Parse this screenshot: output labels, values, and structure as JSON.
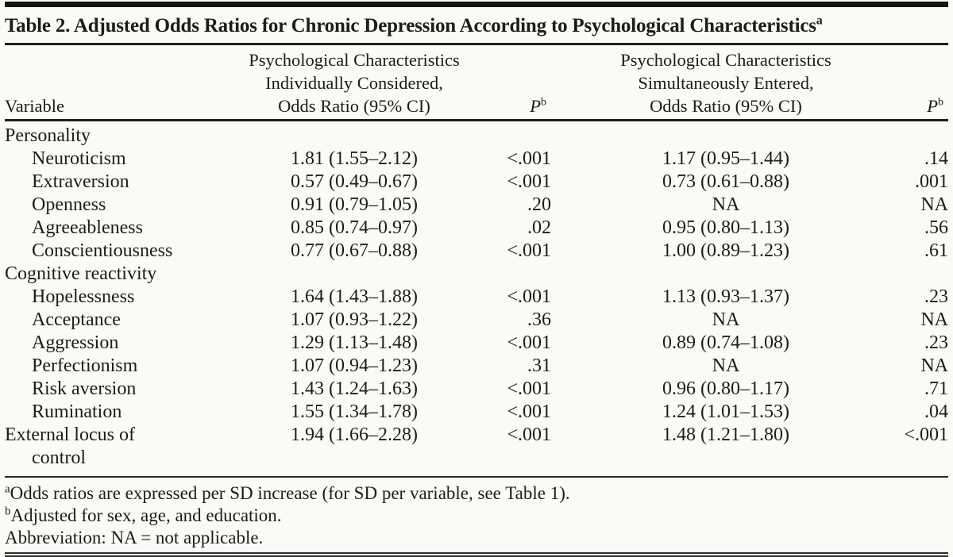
{
  "table": {
    "title": "Table 2. Adjusted Odds Ratios for Chronic Depression According to Psychological Characteristics",
    "title_marker": "a",
    "header": {
      "variable": "Variable",
      "group1_lines": [
        "Psychological Characteristics",
        "Individually Considered,",
        "Odds Ratio (95% CI)"
      ],
      "p_label": "P",
      "p_marker": "b",
      "group2_lines": [
        "Psychological Characteristics",
        "Simultaneously Entered,",
        "Odds Ratio (95% CI)"
      ]
    },
    "rows": [
      {
        "type": "section",
        "label": "Personality",
        "or1": "",
        "p1": "",
        "or2": "",
        "p2": ""
      },
      {
        "type": "item",
        "label": "Neuroticism",
        "or1": "1.81 (1.55–2.12)",
        "p1": "<.001",
        "or2": "1.17 (0.95–1.44)",
        "p2": ".14"
      },
      {
        "type": "item",
        "label": "Extraversion",
        "or1": "0.57 (0.49–0.67)",
        "p1": "<.001",
        "or2": "0.73 (0.61–0.88)",
        "p2": ".001"
      },
      {
        "type": "item",
        "label": "Openness",
        "or1": "0.91 (0.79–1.05)",
        "p1": ".20",
        "or2": "NA",
        "p2": "NA"
      },
      {
        "type": "item",
        "label": "Agreeableness",
        "or1": "0.85 (0.74–0.97)",
        "p1": ".02",
        "or2": "0.95 (0.80–1.13)",
        "p2": ".56"
      },
      {
        "type": "item",
        "label": "Conscientiousness",
        "or1": "0.77 (0.67–0.88)",
        "p1": "<.001",
        "or2": "1.00 (0.89–1.23)",
        "p2": ".61"
      },
      {
        "type": "section",
        "label": "Cognitive reactivity",
        "or1": "",
        "p1": "",
        "or2": "",
        "p2": ""
      },
      {
        "type": "item",
        "label": "Hopelessness",
        "or1": "1.64 (1.43–1.88)",
        "p1": "<.001",
        "or2": "1.13 (0.93–1.37)",
        "p2": ".23"
      },
      {
        "type": "item",
        "label": "Acceptance",
        "or1": "1.07 (0.93–1.22)",
        "p1": ".36",
        "or2": "NA",
        "p2": "NA"
      },
      {
        "type": "item",
        "label": "Aggression",
        "or1": "1.29 (1.13–1.48)",
        "p1": "<.001",
        "or2": "0.89 (0.74–1.08)",
        "p2": ".23"
      },
      {
        "type": "item",
        "label": "Perfectionism",
        "or1": "1.07 (0.94–1.23)",
        "p1": ".31",
        "or2": "NA",
        "p2": "NA"
      },
      {
        "type": "item",
        "label": "Risk aversion",
        "or1": "1.43 (1.24–1.63)",
        "p1": "<.001",
        "or2": "0.96 (0.80–1.17)",
        "p2": ".71"
      },
      {
        "type": "item",
        "label": "Rumination",
        "or1": "1.55 (1.34–1.78)",
        "p1": "<.001",
        "or2": "1.24 (1.01–1.53)",
        "p2": ".04"
      },
      {
        "type": "wrap",
        "label": "External locus of\ncontrol",
        "or1": "1.94 (1.66–2.28)",
        "p1": "<.001",
        "or2": "1.48 (1.21–1.80)",
        "p2": "<.001"
      }
    ],
    "footnotes": [
      {
        "marker": "a",
        "text": "Odds ratios are expressed per SD increase (for SD per variable, see Table 1)."
      },
      {
        "marker": "b",
        "text": "Adjusted for sex, age, and education."
      },
      {
        "marker": "",
        "text": "Abbreviation: NA = not applicable."
      }
    ]
  }
}
